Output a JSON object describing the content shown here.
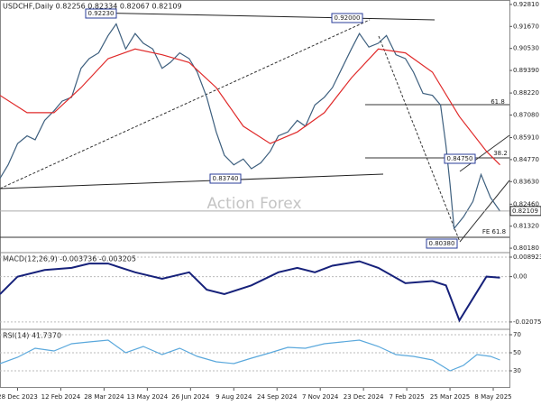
{
  "chart_data": [
    {
      "type": "line",
      "title": "USDCHF,Daily 0.82256 0.82334 0.82067 0.82109",
      "watermark": "Action Forex",
      "xlim": [
        -13,
        364
      ],
      "xticks": [
        {
          "value": 0,
          "label": "28 Dec 2023"
        },
        {
          "value": 32,
          "label": "12 Feb 2024"
        },
        {
          "value": 64,
          "label": "28 Mar 2024"
        },
        {
          "value": 96,
          "label": "13 May 2024"
        },
        {
          "value": 128,
          "label": "26 Jun 2024"
        },
        {
          "value": 160,
          "label": "9 Aug 2024"
        },
        {
          "value": 192,
          "label": "24 Sep 2024"
        },
        {
          "value": 224,
          "label": "7 Nov 2024"
        },
        {
          "value": 256,
          "label": "23 Dec 2024"
        },
        {
          "value": 288,
          "label": "7 Feb 2025"
        },
        {
          "value": 320,
          "label": "25 Mar 2025"
        },
        {
          "value": 352,
          "label": "8 May 2025"
        }
      ],
      "ylim": [
        0.7995,
        0.9304
      ],
      "yticks": [
        {
          "value": 0.9281,
          "label": "0.92810"
        },
        {
          "value": 0.9167,
          "label": "0.91670"
        },
        {
          "value": 0.9053,
          "label": "0.90530"
        },
        {
          "value": 0.8939,
          "label": "0.89390"
        },
        {
          "value": 0.8822,
          "label": "0.88220"
        },
        {
          "value": 0.8708,
          "label": "0.87080"
        },
        {
          "value": 0.8591,
          "label": "0.85910"
        },
        {
          "value": 0.8477,
          "label": "0.84770"
        },
        {
          "value": 0.8363,
          "label": "0.83630"
        },
        {
          "value": 0.8246,
          "label": "0.82460"
        },
        {
          "value": 0.8132,
          "label": "0.81320"
        },
        {
          "value": 0.8018,
          "label": "0.80180"
        }
      ],
      "last_price": 0.82109,
      "annotations": [
        "0.92230",
        "0.92000",
        "0.83740",
        "0.84750",
        "0.80380",
        "61.8",
        "38.2",
        "FE 61.8"
      ],
      "series": [
        {
          "color": "#3d5f7e",
          "x": [
            -13,
            -7,
            0,
            7,
            13,
            20,
            27,
            33,
            40,
            47,
            53,
            60,
            67,
            73,
            80,
            87,
            93,
            100,
            107,
            113,
            120,
            127,
            133,
            140,
            147,
            153,
            160,
            167,
            173,
            180,
            187,
            193,
            200,
            207,
            213,
            220,
            227,
            233,
            240,
            247,
            253,
            260,
            267,
            273,
            280,
            287,
            293,
            300,
            307,
            313,
            317,
            320,
            323,
            330,
            337,
            343,
            350,
            357
          ],
          "values": [
            0.838,
            0.845,
            0.856,
            0.86,
            0.858,
            0.868,
            0.873,
            0.878,
            0.88,
            0.895,
            0.9,
            0.903,
            0.912,
            0.918,
            0.905,
            0.913,
            0.908,
            0.905,
            0.895,
            0.898,
            0.903,
            0.9,
            0.893,
            0.88,
            0.862,
            0.85,
            0.845,
            0.848,
            0.843,
            0.846,
            0.852,
            0.86,
            0.862,
            0.868,
            0.865,
            0.876,
            0.88,
            0.885,
            0.895,
            0.905,
            0.913,
            0.906,
            0.908,
            0.912,
            0.902,
            0.9,
            0.893,
            0.882,
            0.881,
            0.876,
            0.855,
            0.835,
            0.812,
            0.818,
            0.826,
            0.84,
            0.828,
            0.821
          ]
        },
        {
          "color": "#e02a2a",
          "x": [
            -13,
            7,
            27,
            47,
            67,
            87,
            107,
            127,
            147,
            167,
            187,
            207,
            227,
            247,
            267,
            287,
            307,
            327,
            347,
            357
          ],
          "values": [
            0.881,
            0.872,
            0.872,
            0.885,
            0.9,
            0.905,
            0.902,
            0.898,
            0.885,
            0.865,
            0.856,
            0.862,
            0.872,
            0.89,
            0.905,
            0.903,
            0.893,
            0.87,
            0.852,
            0.845
          ]
        }
      ]
    },
    {
      "type": "line",
      "title": "MACD(12,26,9) -0.003736 -0.003205",
      "xlim": [
        -13,
        364
      ],
      "ylim": [
        -0.0241,
        0.01098
      ],
      "yticks": [
        0.008923,
        {
          "value": 0,
          "label": "0.00"
        },
        -0.020759
      ],
      "series": [
        {
          "color": "#16217a",
          "x": [
            -13,
            0,
            20,
            40,
            53,
            67,
            87,
            107,
            127,
            140,
            153,
            173,
            193,
            207,
            220,
            233,
            253,
            267,
            287,
            307,
            317,
            327,
            337,
            347,
            357
          ],
          "values": [
            -0.008,
            0,
            0.003,
            0.004,
            0.006,
            0.006,
            0.002,
            -0.001,
            0.002,
            -0.006,
            -0.008,
            -0.004,
            0.002,
            0.004,
            0.002,
            0.005,
            0.007,
            0.004,
            -0.003,
            -0.002,
            -0.004,
            -0.02,
            -0.01,
            0,
            -0.0005
          ]
        }
      ]
    },
    {
      "type": "line",
      "title": "RSI(14) 41.7370",
      "xlim": [
        -13,
        364
      ],
      "ylim": [
        11,
        76
      ],
      "yticks": [
        70,
        50,
        30
      ],
      "series": [
        {
          "color": "#5aa8dc",
          "x": [
            -13,
            0,
            13,
            27,
            40,
            53,
            67,
            80,
            93,
            107,
            120,
            133,
            147,
            160,
            173,
            187,
            200,
            213,
            227,
            240,
            253,
            267,
            280,
            293,
            307,
            320,
            330,
            340,
            350,
            357
          ],
          "values": [
            38,
            45,
            55,
            52,
            60,
            62,
            64,
            50,
            57,
            48,
            55,
            46,
            40,
            38,
            44,
            50,
            56,
            55,
            60,
            62,
            64,
            57,
            48,
            46,
            42,
            30,
            36,
            48,
            46,
            42
          ]
        }
      ]
    }
  ]
}
